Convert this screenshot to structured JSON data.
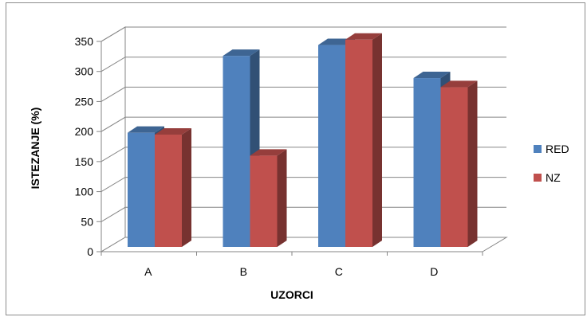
{
  "chart_data": {
    "type": "bar",
    "style": "3d-clustered-column",
    "categories": [
      "A",
      "B",
      "C",
      "D"
    ],
    "series": [
      {
        "name": "RED",
        "values": [
          190,
          318,
          336,
          281
        ],
        "color": "#4f81bd"
      },
      {
        "name": "NZ",
        "values": [
          187,
          152,
          345,
          266
        ],
        "color": "#c0504d"
      }
    ],
    "xlabel": "UZORCI",
    "ylabel": "ISTEZANJE (%)",
    "ylim": [
      0,
      350
    ],
    "yticks": [
      0,
      50,
      100,
      150,
      200,
      250,
      300,
      350
    ],
    "grid": true,
    "legend_position": "right"
  }
}
